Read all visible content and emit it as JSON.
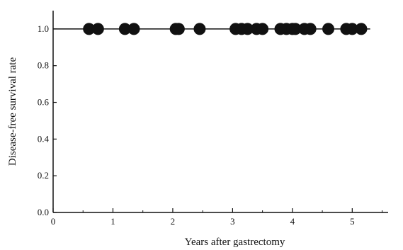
{
  "chart_data": {
    "type": "scatter",
    "title": "",
    "xlabel": "Years after gastrectomy",
    "ylabel": "Disease-free survival rate",
    "xlim": [
      0,
      5.6
    ],
    "ylim": [
      0,
      1.1
    ],
    "x_ticks": [
      0,
      1,
      2,
      3,
      4,
      5
    ],
    "x_tick_labels": [
      "0",
      "1",
      "2",
      "3",
      "4",
      "5"
    ],
    "y_ticks": [
      0.0,
      0.2,
      0.4,
      0.6,
      0.8,
      1.0
    ],
    "y_tick_labels": [
      "0.0",
      "0.2",
      "0.4",
      "0.6",
      "0.8",
      "1.0"
    ],
    "grid": false,
    "survival_line": {
      "x": [
        0,
        5.3
      ],
      "y": 1.0
    },
    "series": [
      {
        "x": [
          0.6,
          0.75,
          1.2,
          1.35,
          2.05,
          2.1,
          2.45,
          3.05,
          3.15,
          3.25,
          3.4,
          3.5,
          3.8,
          3.9,
          4.0,
          4.05,
          4.2,
          4.3,
          4.6,
          4.9,
          5.0,
          5.15
        ],
        "y": [
          1.0,
          1.0,
          1.0,
          1.0,
          1.0,
          1.0,
          1.0,
          1.0,
          1.0,
          1.0,
          1.0,
          1.0,
          1.0,
          1.0,
          1.0,
          1.0,
          1.0,
          1.0,
          1.0,
          1.0,
          1.0,
          1.0
        ]
      }
    ],
    "colors": {
      "axis": "#111111",
      "marker": "#111111",
      "line": "#111111"
    }
  }
}
